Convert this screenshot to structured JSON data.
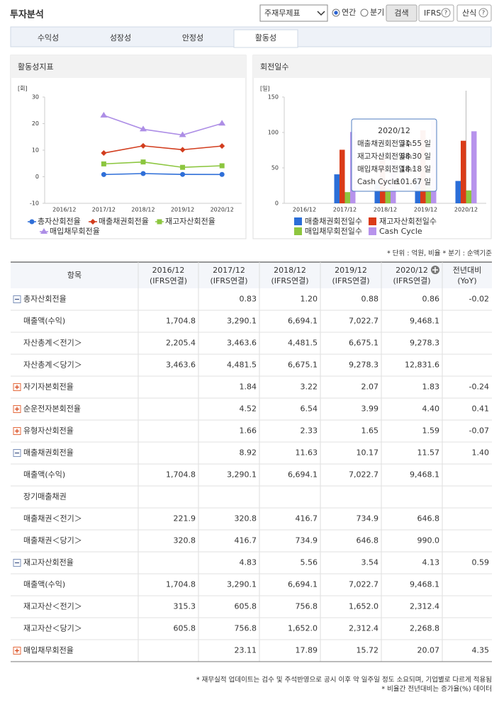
{
  "header": {
    "title": "투자분석",
    "select": "주재무제표",
    "radios": [
      "연간",
      "분기"
    ],
    "radio_selected": 0,
    "buttons": [
      "검색",
      "IFRS",
      "산식"
    ]
  },
  "tabs": {
    "items": [
      "수익성",
      "성장성",
      "안정성",
      "활동성"
    ],
    "active": 3
  },
  "chart_data": [
    {
      "type": "line",
      "title": "활동성지표",
      "y_unit": "[회]",
      "categories": [
        "2016/12",
        "2017/12",
        "2018/12",
        "2019/12",
        "2020/12"
      ],
      "ylim": [
        -10,
        30
      ],
      "yticks": [
        -10,
        0,
        10,
        20,
        30
      ],
      "grid": false,
      "series": [
        {
          "name": "총자산회전율",
          "color": "#2f6fd8",
          "marker": "circle",
          "values": [
            null,
            0.83,
            1.2,
            0.88,
            0.86
          ]
        },
        {
          "name": "매출채권회전율",
          "color": "#d23d1e",
          "marker": "diamond",
          "values": [
            null,
            8.92,
            11.63,
            10.17,
            11.57
          ]
        },
        {
          "name": "재고자산회전율",
          "color": "#8cc63f",
          "marker": "square",
          "values": [
            null,
            4.83,
            5.56,
            3.54,
            4.13
          ]
        },
        {
          "name": "매입채무회전율",
          "color": "#ad8ee6",
          "marker": "triangle",
          "values": [
            null,
            23.11,
            17.89,
            15.72,
            20.07
          ]
        }
      ]
    },
    {
      "type": "bar",
      "title": "회전일수",
      "y_unit": "[일]",
      "categories": [
        "2016/12",
        "2017/12",
        "2018/12",
        "2019/12",
        "2020/12"
      ],
      "ylim": [
        0,
        150
      ],
      "yticks": [
        0,
        50,
        100,
        150
      ],
      "grid": false,
      "series": [
        {
          "name": "매출채권회전일수",
          "color": "#2b6ed8",
          "values": [
            null,
            40.9,
            31.4,
            35.9,
            31.55
          ]
        },
        {
          "name": "재고자산회전일수",
          "color": "#da3b18",
          "values": [
            null,
            75.6,
            65.6,
            103.1,
            88.3
          ]
        },
        {
          "name": "매입채무회전일수",
          "color": "#8ec63f",
          "values": [
            null,
            15.8,
            20.4,
            23.2,
            18.18
          ]
        },
        {
          "name": "Cash Cycle",
          "color": "#b793ec",
          "values": [
            null,
            100.7,
            76.6,
            115.8,
            101.67
          ]
        }
      ],
      "tooltip": {
        "title": "2020/12",
        "rows": [
          {
            "label": "매출채권회전일수:",
            "value": "31.55 일"
          },
          {
            "label": "재고자산회전일수:",
            "value": "88.30 일"
          },
          {
            "label": "매입채무회전일수:",
            "value": "18.18 일"
          },
          {
            "label": "Cash Cycle",
            "value": ":101.67 일"
          }
        ]
      }
    }
  ],
  "notes": "* 단위 : 억원, 비율   * 분기 : 순액기준",
  "table": {
    "columns": [
      [
        "항목"
      ],
      [
        "2016/12",
        "(IFRS연결)"
      ],
      [
        "2017/12",
        "(IFRS연결)"
      ],
      [
        "2018/12",
        "(IFRS연결)"
      ],
      [
        "2019/12",
        "(IFRS연결)"
      ],
      [
        "2020/12",
        "(IFRS연결)"
      ],
      [
        "전년대비",
        "(YoY)"
      ]
    ],
    "rows": [
      {
        "label": "총자산회전율",
        "toggle": "minus",
        "cells": [
          null,
          "0.83",
          "1.20",
          "0.88",
          "0.86",
          "-0.02"
        ]
      },
      {
        "label": "매출액(수익)",
        "toggle": null,
        "cells": [
          "1,704.8",
          "3,290.1",
          "6,694.1",
          "7,022.7",
          "9,468.1",
          null
        ]
      },
      {
        "label": "자산총계＜전기＞",
        "toggle": null,
        "cells": [
          "2,205.4",
          "3,463.6",
          "4,481.5",
          "6,675.1",
          "9,278.3",
          null
        ]
      },
      {
        "label": "자산총계＜당기＞",
        "toggle": null,
        "cells": [
          "3,463.6",
          "4,481.5",
          "6,675.1",
          "9,278.3",
          "12,831.6",
          null
        ]
      },
      {
        "label": "자기자본회전율",
        "toggle": "plus",
        "cells": [
          null,
          "1.84",
          "3.22",
          "2.07",
          "1.83",
          "-0.24"
        ]
      },
      {
        "label": "순운전자본회전율",
        "toggle": "plus",
        "cells": [
          null,
          "4.52",
          "6.54",
          "3.99",
          "4.40",
          "0.41"
        ]
      },
      {
        "label": "유형자산회전율",
        "toggle": "plus",
        "cells": [
          null,
          "1.66",
          "2.33",
          "1.65",
          "1.59",
          "-0.07"
        ]
      },
      {
        "label": "매출채권회전율",
        "toggle": "minus",
        "cells": [
          null,
          "8.92",
          "11.63",
          "10.17",
          "11.57",
          "1.40"
        ]
      },
      {
        "label": "매출액(수익)",
        "toggle": null,
        "cells": [
          "1,704.8",
          "3,290.1",
          "6,694.1",
          "7,022.7",
          "9,468.1",
          null
        ]
      },
      {
        "label": "장기매출채권",
        "toggle": null,
        "cells": [
          null,
          null,
          null,
          null,
          null,
          null
        ]
      },
      {
        "label": "매출채권＜전기＞",
        "toggle": null,
        "cells": [
          "221.9",
          "320.8",
          "416.7",
          "734.9",
          "646.8",
          null
        ]
      },
      {
        "label": "매출채권＜당기＞",
        "toggle": null,
        "cells": [
          "320.8",
          "416.7",
          "734.9",
          "646.8",
          "990.0",
          null
        ]
      },
      {
        "label": "재고자산회전율",
        "toggle": "minus",
        "cells": [
          null,
          "4.83",
          "5.56",
          "3.54",
          "4.13",
          "0.59"
        ]
      },
      {
        "label": "매출액(수익)",
        "toggle": null,
        "cells": [
          "1,704.8",
          "3,290.1",
          "6,694.1",
          "7,022.7",
          "9,468.1",
          null
        ]
      },
      {
        "label": "재고자산＜전기＞",
        "toggle": null,
        "cells": [
          "315.3",
          "605.8",
          "756.8",
          "1,652.0",
          "2,312.4",
          null
        ]
      },
      {
        "label": "재고자산＜당기＞",
        "toggle": null,
        "cells": [
          "605.8",
          "756.8",
          "1,652.0",
          "2,312.4",
          "2,268.8",
          null
        ]
      },
      {
        "label": "매입채무회전율",
        "toggle": "plus",
        "cells": [
          null,
          "23.11",
          "17.89",
          "15.72",
          "20.07",
          "4.35"
        ]
      }
    ]
  },
  "footer": [
    "* 재무실적 업데이트는 검수 및 주석반영으로 공시 이후 약 일주일 정도 소요되며, 기업별로 다르게 적용됨",
    "* 비율간 전년대비는 증가율(%) 데이터"
  ]
}
